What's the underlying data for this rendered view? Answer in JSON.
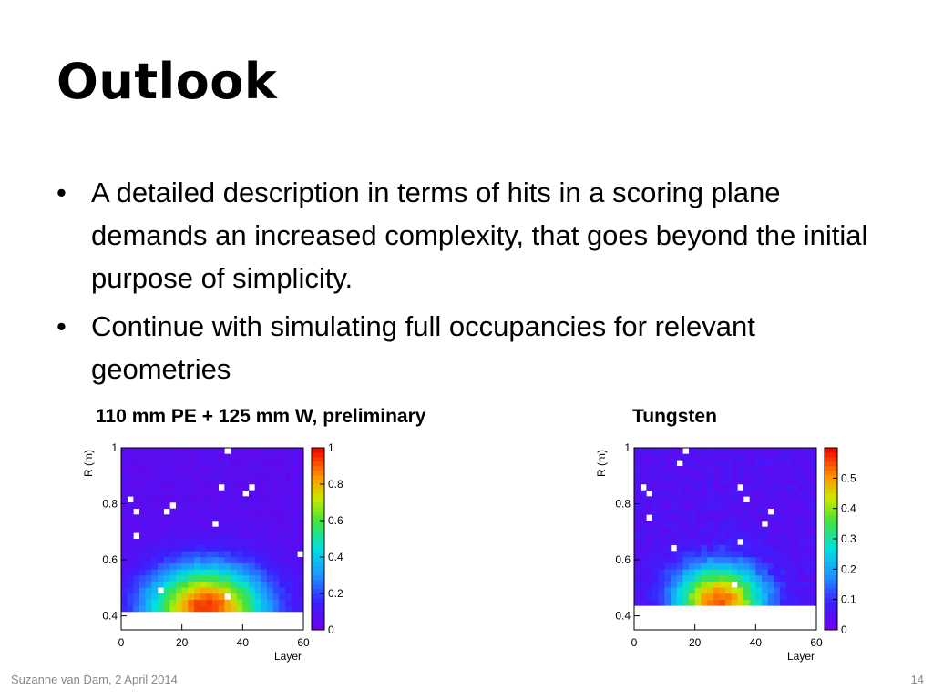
{
  "slide": {
    "title": "Outlook",
    "bullets": [
      "A detailed description in terms of hits in a scoring plane demands an increased complexity, that goes beyond the initial purpose of simplicity.",
      "Continue with simulating full occupancies for relevant geometries"
    ],
    "bullet_glyph": "•",
    "captions": {
      "left": "110 mm PE + 125 mm W, preliminary",
      "right": "Tungsten"
    },
    "footer": {
      "author_date": "Suzanne van Dam, 2 April 2014",
      "page_number": "14"
    }
  },
  "chart_data": [
    {
      "type": "heatmap",
      "xlabel": "Layer",
      "ylabel": "R (m)",
      "xlim": [
        0,
        60
      ],
      "ylim": [
        0.35,
        1.0
      ],
      "x_ticks": [
        "0",
        "20",
        "40",
        "60"
      ],
      "y_ticks": [
        "0.4",
        "0.6",
        "0.8",
        "1"
      ],
      "colorbar": {
        "min": 0,
        "max": 1,
        "ticks": [
          "0",
          "0.2",
          "0.4",
          "0.6",
          "0.8",
          "1"
        ]
      },
      "data_rmin": 0.42,
      "peak": {
        "layer": 28,
        "r": 0.43,
        "value": 0.95,
        "layer_spread": 13,
        "r_spread": 0.1
      },
      "baseline": 0.06
    },
    {
      "type": "heatmap",
      "xlabel": "Layer",
      "ylabel": "R (m)",
      "xlim": [
        0,
        60
      ],
      "ylim": [
        0.35,
        1.0
      ],
      "x_ticks": [
        "0",
        "20",
        "40",
        "60"
      ],
      "y_ticks": [
        "0.4",
        "0.6",
        "0.8",
        "1"
      ],
      "colorbar": {
        "min": 0,
        "max": 0.6,
        "ticks": [
          "0",
          "0.1",
          "0.2",
          "0.3",
          "0.4",
          "0.5"
        ]
      },
      "data_rmin": 0.44,
      "peak": {
        "layer": 28,
        "r": 0.45,
        "value": 0.55,
        "layer_spread": 10,
        "r_spread": 0.09
      },
      "baseline": 0.05
    }
  ]
}
